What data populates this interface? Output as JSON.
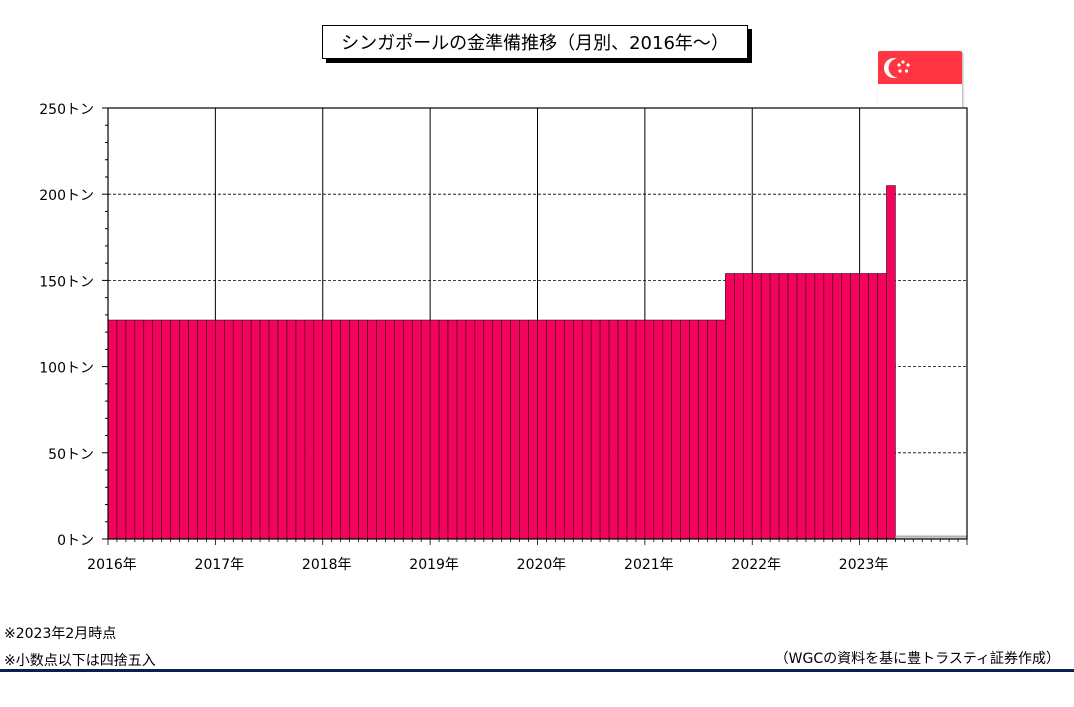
{
  "title": "シンガポールの金準備推移（月別、2016年～）",
  "notes": [
    "※2023年2月時点",
    "※小数点以下は四捨五入"
  ],
  "source": "（WGCの資料を基に豊トラスティ証券作成）",
  "colors": {
    "bar": "#f2045d",
    "bar_edge": "#3a0012",
    "flag_red": "#ff3542",
    "rule": "#0b1f4e"
  },
  "flag_icon": "singapore-flag-icon",
  "chart_data": {
    "type": "bar",
    "title": "シンガポールの金準備推移（月別、2016年～）",
    "xlabel": "",
    "ylabel": "",
    "y_unit": "トン",
    "ylim": [
      0,
      250
    ],
    "yticks": [
      0,
      50,
      100,
      150,
      200,
      250
    ],
    "ytick_labels": [
      "0トン",
      "50トン",
      "100トン",
      "150トン",
      "200トン",
      "250トン"
    ],
    "xtick_labels": [
      "2016年",
      "2017年",
      "2018年",
      "2019年",
      "2020年",
      "2021年",
      "2022年",
      "2023年"
    ],
    "grid": true,
    "months_per_year": 12,
    "total_slots": 96,
    "series": [
      {
        "values": [
          127,
          127,
          127,
          127,
          127,
          127,
          127,
          127,
          127,
          127,
          127,
          127,
          127,
          127,
          127,
          127,
          127,
          127,
          127,
          127,
          127,
          127,
          127,
          127,
          127,
          127,
          127,
          127,
          127,
          127,
          127,
          127,
          127,
          127,
          127,
          127,
          127,
          127,
          127,
          127,
          127,
          127,
          127,
          127,
          127,
          127,
          127,
          127,
          127,
          127,
          127,
          127,
          127,
          127,
          127,
          127,
          127,
          127,
          127,
          127,
          127,
          127,
          127,
          127,
          127,
          127,
          127,
          127,
          127,
          154,
          154,
          154,
          154,
          154,
          154,
          154,
          154,
          154,
          154,
          154,
          154,
          154,
          154,
          154,
          154,
          154,
          154,
          205
        ]
      }
    ]
  }
}
